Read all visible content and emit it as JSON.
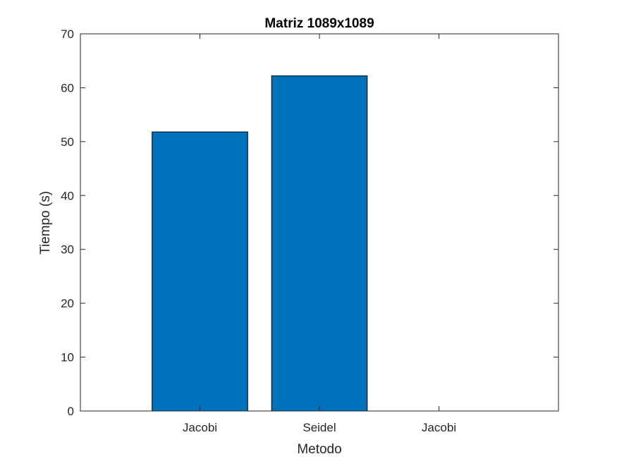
{
  "chart_data": {
    "type": "bar",
    "title": "Matriz 1089x1089",
    "xlabel": "Metodo",
    "ylabel": "Tiempo (s)",
    "x_ticks": [
      "",
      "Jacobi",
      "Seidel",
      "Jacobi"
    ],
    "categories": [
      "Jacobi",
      "Seidel"
    ],
    "values": [
      51.8,
      62.2
    ],
    "ylim": [
      0,
      70
    ],
    "yticks": [
      0,
      10,
      20,
      30,
      40,
      50,
      60,
      70
    ],
    "grid": false,
    "bar_color": "#0072BD",
    "axis_color": "#262626"
  }
}
